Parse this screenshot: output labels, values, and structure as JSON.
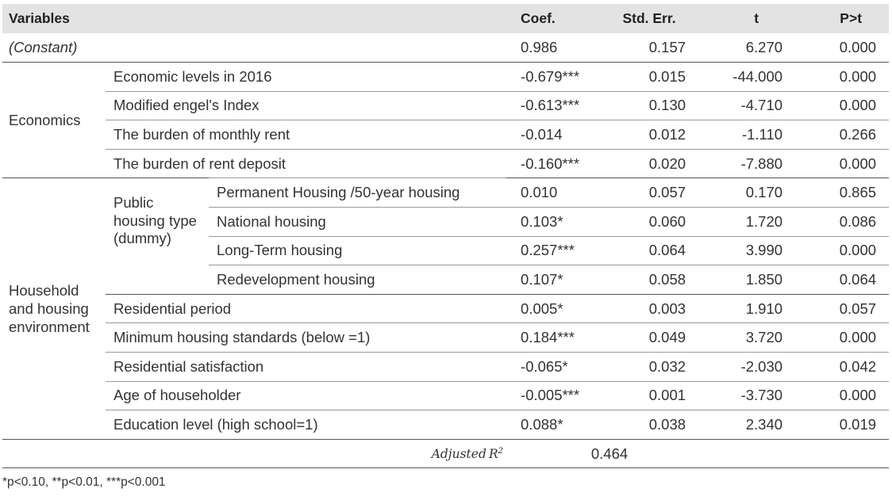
{
  "headers": {
    "variables": "Variables",
    "coef": "Coef.",
    "se": "Std. Err.",
    "t": "t",
    "p": "P>t"
  },
  "constant": {
    "label": "(Constant)",
    "coef": "0.986",
    "se": "0.157",
    "t": "6.270",
    "p": "0.000"
  },
  "groups": {
    "economics": "Economics",
    "household": "Household and housing environment",
    "public_housing": "Public housing type (dummy)"
  },
  "rows": [
    {
      "label": "Economic levels in 2016",
      "coef": "-0.679***",
      "se": "0.015",
      "t": "-44.000",
      "p": "0.000"
    },
    {
      "label": "Modified engel's Index",
      "coef": "-0.613***",
      "se": "0.130",
      "t": "-4.710",
      "p": "0.000"
    },
    {
      "label": "The burden of monthly rent",
      "coef": "-0.014",
      "se": "0.012",
      "t": "-1.110",
      "p": "0.266"
    },
    {
      "label": "The burden of rent deposit",
      "coef": "-0.160***",
      "se": "0.020",
      "t": "-7.880",
      "p": "0.000"
    },
    {
      "label": "Permanent Housing /50-year housing",
      "coef": "0.010",
      "se": "0.057",
      "t": "0.170",
      "p": "0.865"
    },
    {
      "label": "National housing",
      "coef": "0.103*",
      "se": "0.060",
      "t": "1.720",
      "p": "0.086"
    },
    {
      "label": "Long-Term housing",
      "coef": "0.257***",
      "se": "0.064",
      "t": "3.990",
      "p": "0.000"
    },
    {
      "label": "Redevelopment housing",
      "coef": "0.107*",
      "se": "0.058",
      "t": "1.850",
      "p": "0.064"
    },
    {
      "label": "Residential period",
      "coef": "0.005*",
      "se": "0.003",
      "t": "1.910",
      "p": "0.057"
    },
    {
      "label": "Minimum housing standards (below =1)",
      "coef": "0.184***",
      "se": "0.049",
      "t": "3.720",
      "p": "0.000"
    },
    {
      "label": "Residential satisfaction",
      "coef": "-0.065*",
      "se": "0.032",
      "t": "-2.030",
      "p": "0.042"
    },
    {
      "label": "Age of householder",
      "coef": "-0.005***",
      "se": "0.001",
      "t": "-3.730",
      "p": "0.000"
    },
    {
      "label": "Education level (high school=1)",
      "coef": "0.088*",
      "se": "0.038",
      "t": "2.340",
      "p": "0.019"
    }
  ],
  "adjusted_r2": {
    "label": "Adjusted",
    "symbol": "R",
    "sup": "2",
    "value": "0.464"
  },
  "note": "*p<0.10, **p<0.01, ***p<0.001"
}
